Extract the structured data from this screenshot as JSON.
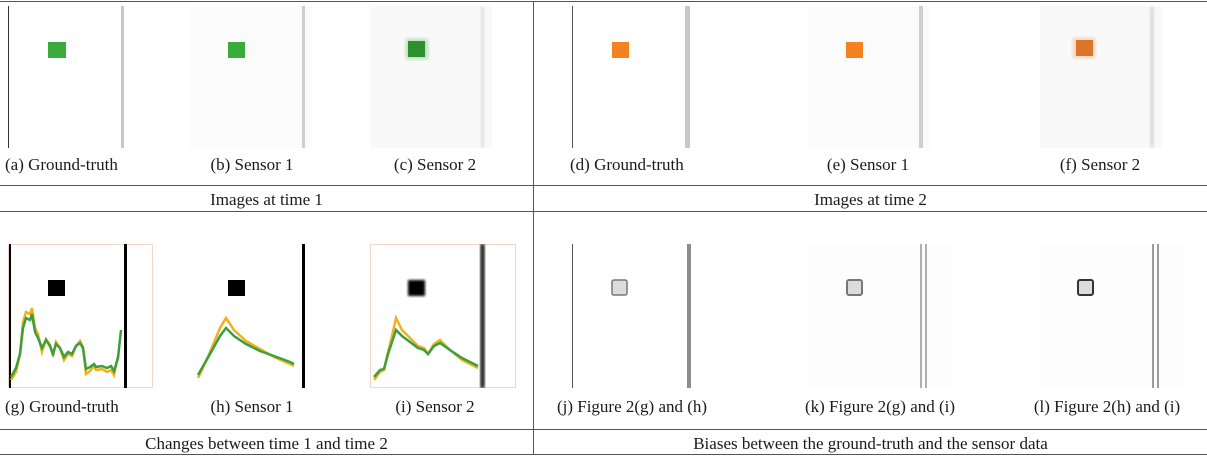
{
  "figure": {
    "colors": {
      "green": "#3bab3b",
      "orange": "#f58220",
      "black": "#000000",
      "gray_line": "#bdbdbd",
      "curve_green": "#3a9f3f",
      "curve_orange": "#f2b11c",
      "diff_fill": "#dcdcdc"
    },
    "sections": {
      "left_top": "Images at time 1",
      "right_top": "Images at time 2",
      "left_bottom": "Changes between time 1 and time 2",
      "right_bottom": "Biases between the ground-truth and the sensor data"
    },
    "captions": {
      "a": "(a) Ground-truth",
      "b": "(b) Sensor 1",
      "c": "(c) Sensor 2",
      "d": "(d) Ground-truth",
      "e": "(e) Sensor 1",
      "f": "(f) Sensor 2",
      "g": "(g) Ground-truth",
      "h": "(h) Sensor 1",
      "i": "(i) Sensor 2",
      "j": "(j) Figure 2(g) and (h)",
      "k": "(k) Figure 2(g) and (i)",
      "l": "(l) Figure 2(h) and (i)"
    }
  }
}
